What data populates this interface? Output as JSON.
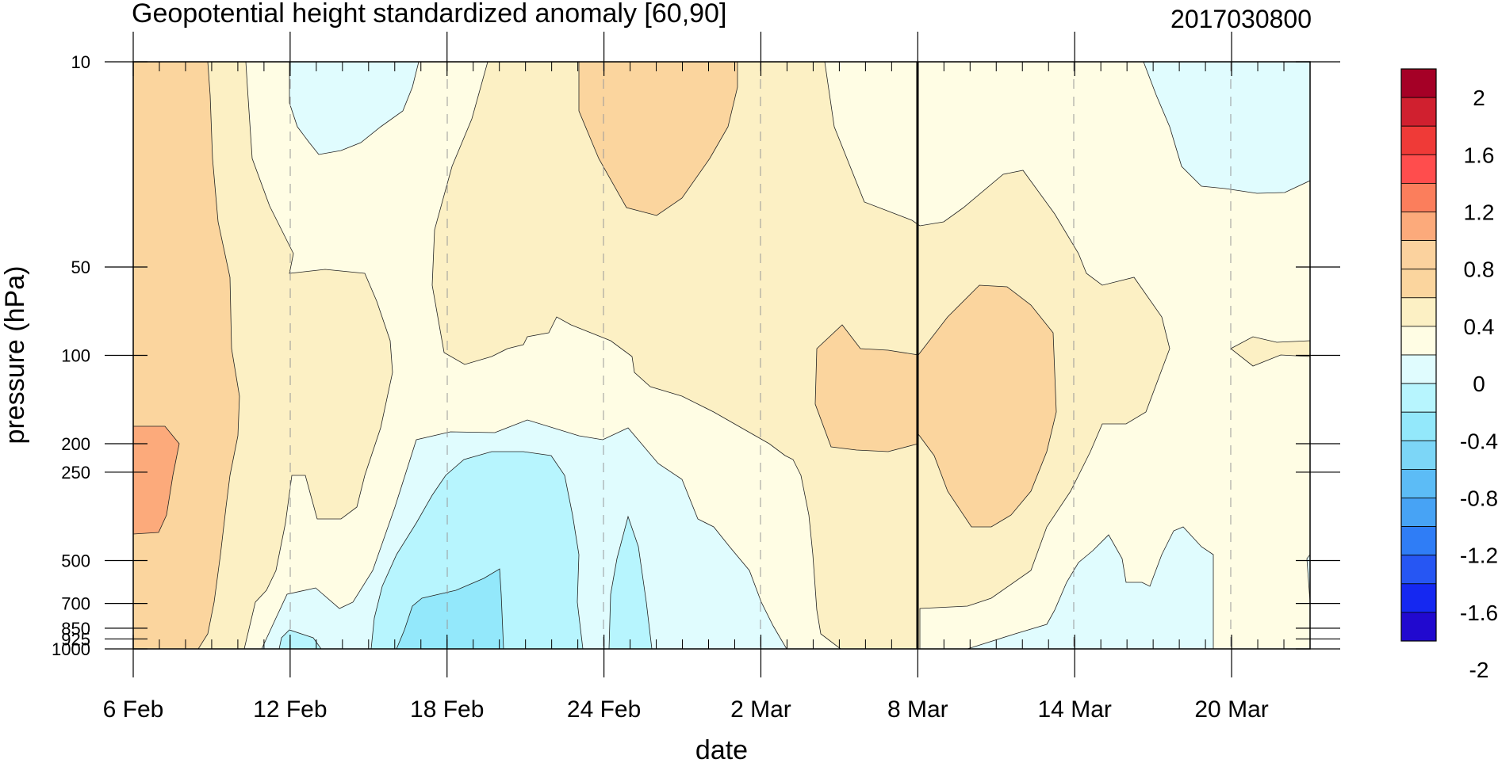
{
  "chart_data": {
    "type": "heatmap",
    "title": "Geopotential height standardized anomaly [60,90]",
    "date_stamp": "2017030800",
    "xlabel": "date",
    "ylabel": "pressure (hPa)",
    "x_ticks": [
      "6 Feb",
      "12 Feb",
      "18 Feb",
      "24 Feb",
      "2 Mar",
      "8 Mar",
      "14 Mar",
      "20 Mar"
    ],
    "xlim": [
      "2017-02-06",
      "2017-03-23"
    ],
    "y_scale": "log",
    "y_ticks": [
      10,
      50,
      100,
      200,
      250,
      500,
      700,
      850,
      925,
      1000
    ],
    "ylim": [
      1000,
      10
    ],
    "current_date_line": "2017-03-08",
    "grid": "dashed vertical lines at labeled dates",
    "legend": {
      "placement": "right colorbar",
      "tick_labels": [
        "2",
        "1.6",
        "1.2",
        "0.8",
        "0.4",
        "0",
        "-0.4",
        "-0.8",
        "-1.2",
        "-1.6",
        "-2"
      ],
      "colors": [
        "#a50026",
        "#d0202f",
        "#ef3a37",
        "#ff4d4d",
        "#fb7e5c",
        "#fcaa7b",
        "#fbd29e",
        "#fbd59e",
        "#fcf0c4",
        "#fffde4",
        "#e0fcfe",
        "#b7f5fe",
        "#93e8fb",
        "#7cd6f7",
        "#5cbcf6",
        "#47a3f5",
        "#2f7df6",
        "#2656f3",
        "#1528f1",
        "#2109cf"
      ]
    },
    "fill_colors": {
      "band_-0.6": "#93e8fb",
      "band_-0.4": "#b7f5fe",
      "band_-0.2": "#e0fcfe",
      "band_0": "#fffde4",
      "band_0.2": "#fcf0c4",
      "band_0.4": "#fbd59e",
      "band_0.8": "#fcaa7b"
    }
  }
}
